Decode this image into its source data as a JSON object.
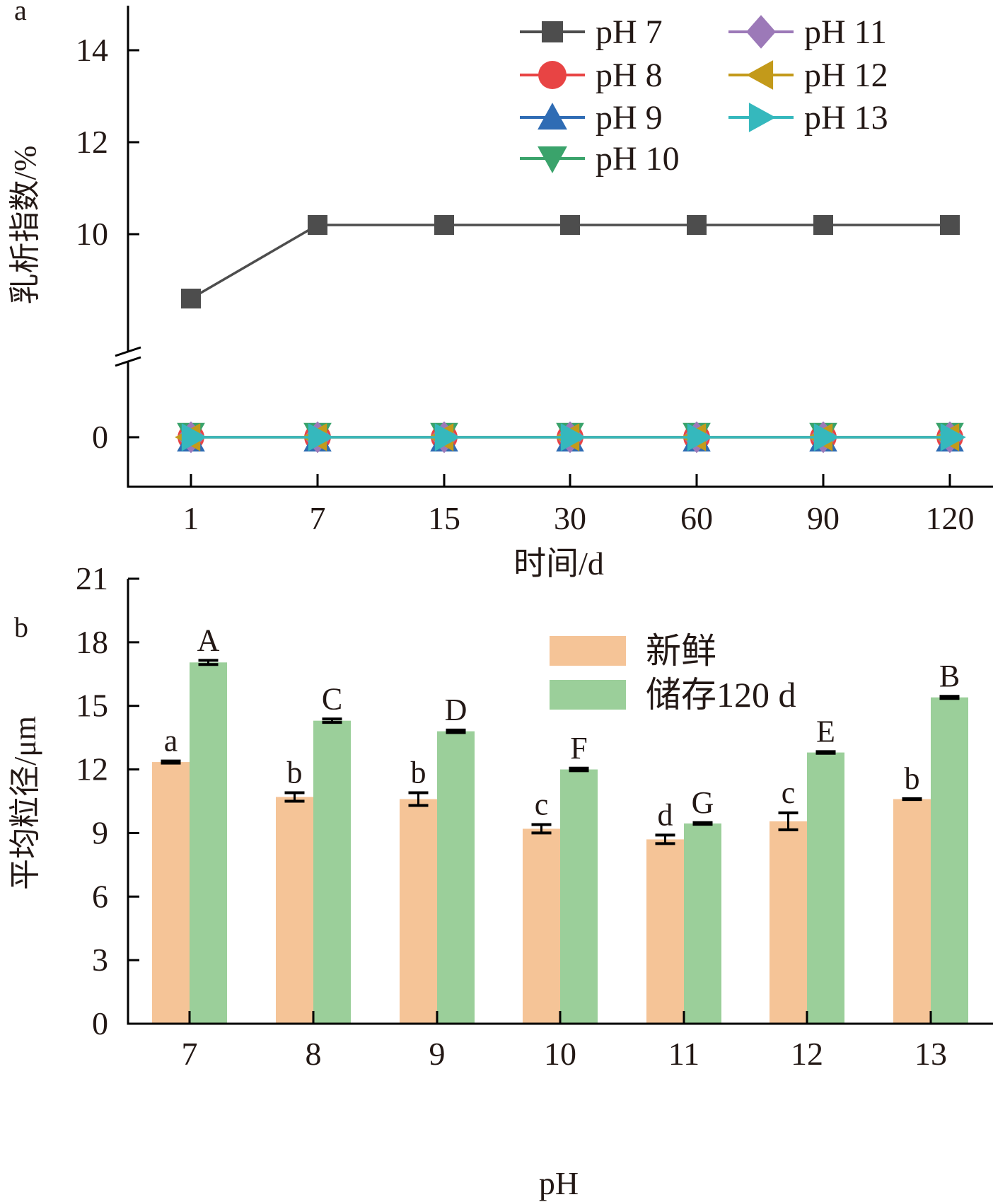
{
  "chart_data": [
    {
      "panel_label": "a",
      "type": "line",
      "title": "",
      "xlabel": "时间/d",
      "ylabel": "乳析指数/%",
      "x": [
        1,
        7,
        15,
        30,
        60,
        90,
        120
      ],
      "x_tick_labels": [
        "1",
        "7",
        "15",
        "30",
        "60",
        "90",
        "120"
      ],
      "y_axis_break": true,
      "y_ticks_upper": [
        10,
        12,
        14
      ],
      "y_ticks_lower": [
        0
      ],
      "ylim_upper": [
        8.2,
        14.9
      ],
      "ylim_lower": [
        -1,
        1.5
      ],
      "grid": false,
      "legend_position": "top-right",
      "series": [
        {
          "name": "pH 7",
          "color": "#4d4d4d",
          "marker": "square",
          "values": [
            8.6,
            10.2,
            10.2,
            10.2,
            10.2,
            10.2,
            10.2
          ]
        },
        {
          "name": "pH 8",
          "color": "#e84444",
          "marker": "circle",
          "values": [
            0,
            0,
            0,
            0,
            0,
            0,
            0
          ]
        },
        {
          "name": "pH 9",
          "color": "#2f6cb4",
          "marker": "triangle-up",
          "values": [
            0,
            0,
            0,
            0,
            0,
            0,
            0
          ]
        },
        {
          "name": "pH 10",
          "color": "#3aa36b",
          "marker": "triangle-down",
          "values": [
            0,
            0,
            0,
            0,
            0,
            0,
            0
          ]
        },
        {
          "name": "pH 11",
          "color": "#9c79b8",
          "marker": "diamond",
          "values": [
            0,
            0,
            0,
            0,
            0,
            0,
            0
          ]
        },
        {
          "name": "pH 12",
          "color": "#c39a1a",
          "marker": "triangle-left",
          "values": [
            0,
            0,
            0,
            0,
            0,
            0,
            0
          ]
        },
        {
          "name": "pH 13",
          "color": "#35b8bd",
          "marker": "triangle-right",
          "values": [
            0,
            0,
            0,
            0,
            0,
            0,
            0
          ]
        }
      ]
    },
    {
      "panel_label": "b",
      "type": "bar",
      "title": "",
      "xlabel": "pH",
      "ylabel": "平均粒径/μm",
      "categories": [
        "7",
        "8",
        "9",
        "10",
        "11",
        "12",
        "13"
      ],
      "ylim": [
        0,
        21
      ],
      "y_ticks": [
        0,
        3,
        6,
        9,
        12,
        15,
        18,
        21
      ],
      "grid": false,
      "legend_position": "top-right",
      "series": [
        {
          "name": "新鲜",
          "color": "#f5c497",
          "values": [
            12.35,
            10.7,
            10.6,
            9.2,
            8.7,
            9.55,
            10.6
          ],
          "errors": [
            0.05,
            0.2,
            0.3,
            0.2,
            0.2,
            0.4,
            0.02
          ],
          "sig_labels": [
            "a",
            "b",
            "b",
            "c",
            "d",
            "c",
            "b"
          ]
        },
        {
          "name": "储存120 d",
          "color": "#9bcf9a",
          "values": [
            17.05,
            14.3,
            13.8,
            12.0,
            9.45,
            12.8,
            15.4
          ],
          "errors": [
            0.1,
            0.08,
            0.06,
            0.06,
            0.04,
            0.04,
            0.05
          ],
          "sig_labels": [
            "A",
            "C",
            "D",
            "F",
            "G",
            "E",
            "B"
          ]
        }
      ]
    }
  ]
}
